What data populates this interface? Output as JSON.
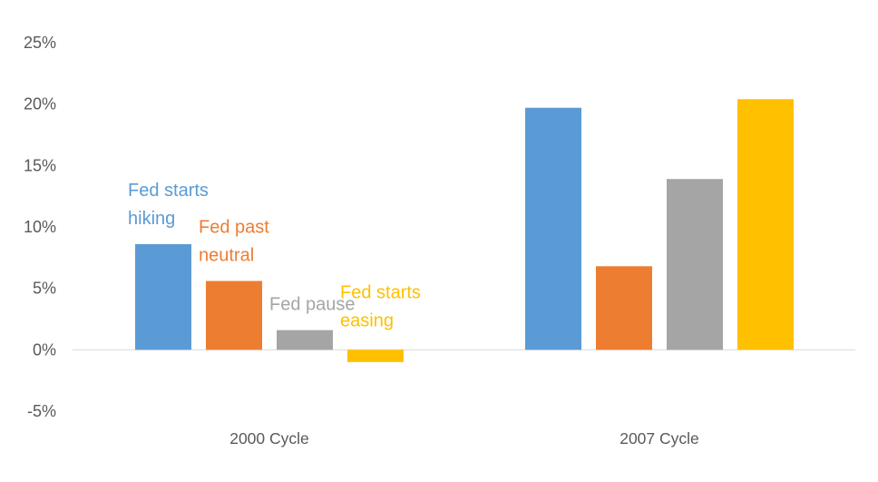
{
  "chart_data": {
    "type": "bar",
    "categories": [
      "2000 Cycle",
      "2007 Cycle"
    ],
    "series": [
      {
        "name": "Fed starts hiking",
        "label_lines": [
          "Fed starts",
          "hiking"
        ],
        "color": "#5B9BD5",
        "values": [
          8.6,
          19.7
        ]
      },
      {
        "name": "Fed past neutral",
        "label_lines": [
          "Fed past",
          "neutral"
        ],
        "color": "#ED7D31",
        "values": [
          5.6,
          6.8
        ]
      },
      {
        "name": "Fed pause",
        "label_lines": [
          "Fed pause"
        ],
        "color": "#A5A5A5",
        "values": [
          1.6,
          13.9
        ]
      },
      {
        "name": "Fed starts easing",
        "label_lines": [
          "Fed starts",
          "easing"
        ],
        "color": "#FFC000",
        "values": [
          -1.0,
          20.4
        ]
      }
    ],
    "yticks": [
      {
        "value": 25,
        "label": "25%"
      },
      {
        "value": 20,
        "label": "20%"
      },
      {
        "value": 15,
        "label": "15%"
      },
      {
        "value": 10,
        "label": "10%"
      },
      {
        "value": 5,
        "label": "5%"
      },
      {
        "value": 0,
        "label": "0%"
      },
      {
        "value": -5,
        "label": "-5%"
      }
    ],
    "ylim": [
      -5,
      25
    ],
    "grid": false,
    "legend": "inline labels above 2000 Cycle bars",
    "title": "",
    "xlabel": "",
    "ylabel": ""
  }
}
